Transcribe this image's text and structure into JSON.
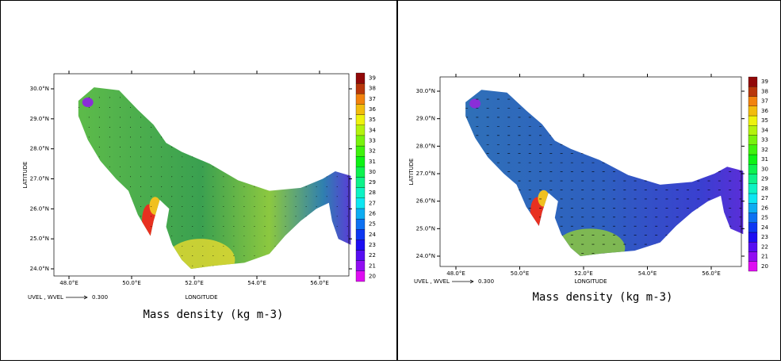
{
  "panels": [
    {
      "title": "Mass density (kg m-3)",
      "x_label": "LONGITUDE",
      "y_label": "LATITUDE",
      "x_ticks": [
        "48.0°E",
        "50.0°E",
        "52.0°E",
        "54.0°E",
        "56.0°E"
      ],
      "y_ticks": [
        "24.0°N",
        "25.0°N",
        "26.0°N",
        "27.0°N",
        "28.0°N",
        "29.0°N",
        "30.0°N"
      ],
      "vector_label": "UVEL , WVEL",
      "vector_value": "0.300",
      "colorbar_labels": [
        20,
        21,
        22,
        23,
        24,
        25,
        26,
        27,
        28,
        29,
        30,
        31,
        32,
        33,
        34,
        35,
        36,
        37,
        38,
        39
      ]
    },
    {
      "title": "Mass density (kg m-3)",
      "x_label": "LONGITUDE",
      "y_label": "LATITUDE",
      "x_ticks": [
        "48.0°E",
        "50.0°E",
        "52.0°E",
        "54.0°E",
        "56.0°E"
      ],
      "y_ticks": [
        "24.0°N",
        "25.0°N",
        "26.0°N",
        "27.0°N",
        "28.0°N",
        "29.0°N",
        "30.0°N"
      ],
      "vector_label": "UVEL , WVEL",
      "vector_value": "0.300",
      "colorbar_labels": [
        20,
        21,
        22,
        23,
        24,
        25,
        26,
        27,
        28,
        29,
        30,
        31,
        32,
        33,
        34,
        35,
        36,
        37,
        38,
        39
      ]
    }
  ]
}
